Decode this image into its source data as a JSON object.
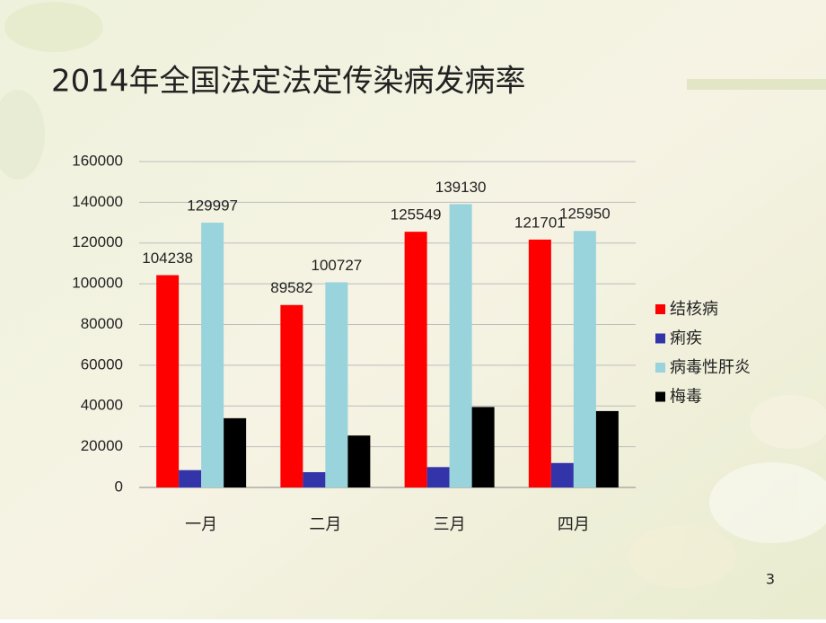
{
  "title": "2014年全国法定法定传染病发病率",
  "page_number": "3",
  "chart_data": {
    "type": "bar",
    "categories": [
      "一月",
      "二月",
      "三月",
      "四月"
    ],
    "series": [
      {
        "name": "结核病",
        "color": "#ff0000",
        "values": [
          104238,
          89582,
          125549,
          121701
        ],
        "data_labels": true
      },
      {
        "name": "痢疾",
        "color": "#3333aa",
        "values": [
          8500,
          7500,
          10000,
          12000
        ],
        "data_labels": false
      },
      {
        "name": "病毒性肝炎",
        "color": "#99d3dc",
        "values": [
          129997,
          100727,
          139130,
          125950
        ],
        "data_labels": true
      },
      {
        "name": "梅毒",
        "color": "#000000",
        "values": [
          34000,
          25500,
          39500,
          37500
        ],
        "data_labels": false
      }
    ],
    "ylim": [
      0,
      160000
    ],
    "yticks": [
      0,
      20000,
      40000,
      60000,
      80000,
      100000,
      120000,
      140000,
      160000
    ],
    "grid": true,
    "legend": "right"
  }
}
